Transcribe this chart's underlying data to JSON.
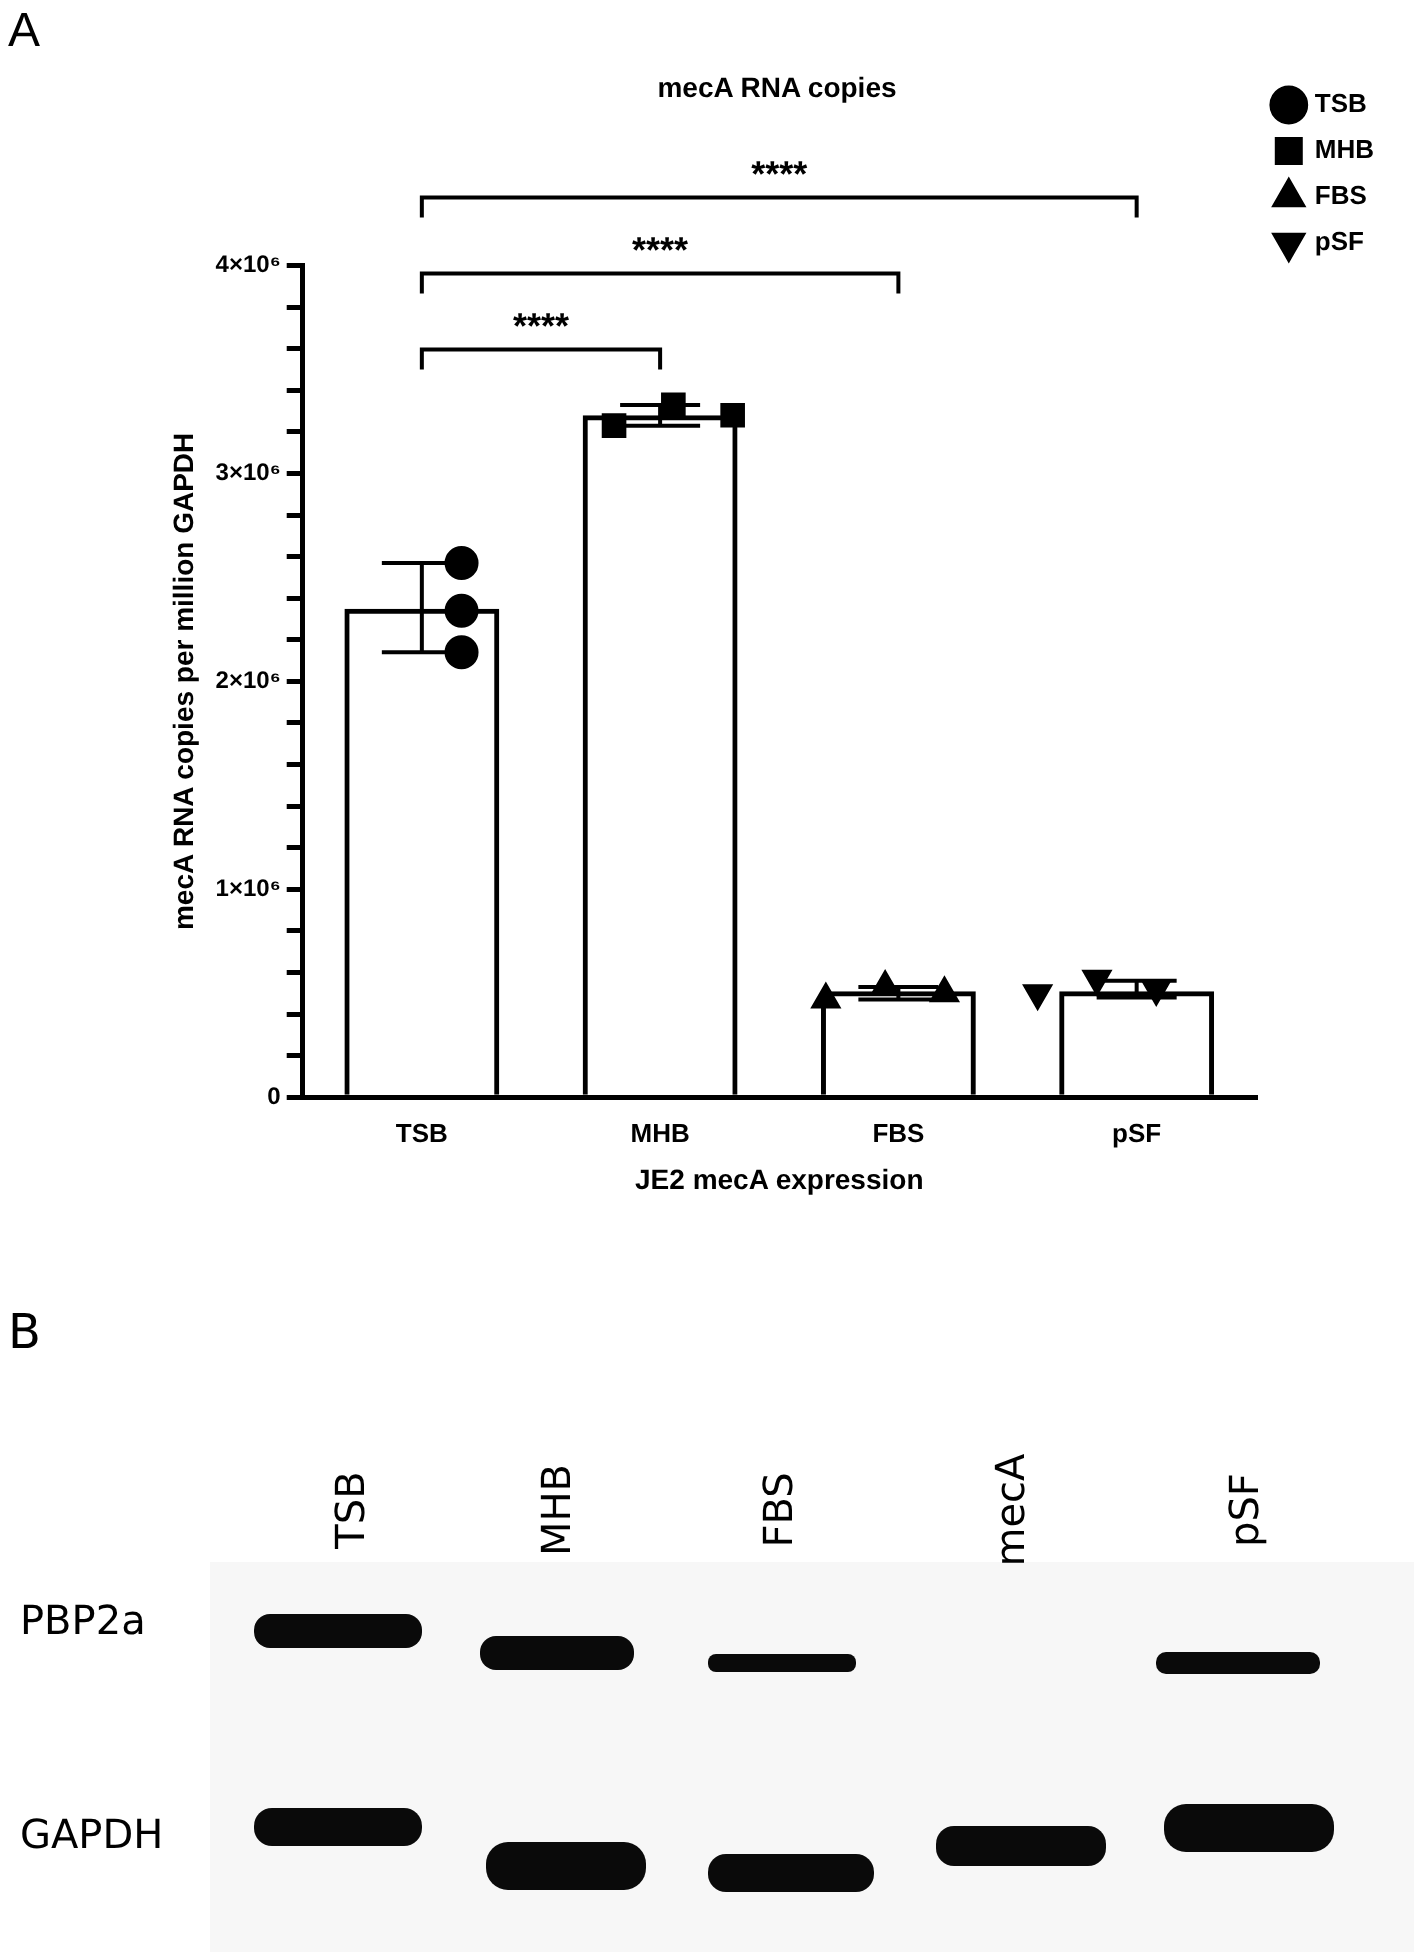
{
  "chart_data": [
    {
      "type": "bar",
      "title": "mecA RNA copies",
      "xlabel": "JE2 mecA expression",
      "ylabel": "mecA RNA copies per million GAPDH",
      "categories": [
        "TSB",
        "MHB",
        "FBS",
        "pSF"
      ],
      "series": [
        {
          "type": "bar",
          "color": "#000000",
          "values": [
            2350000,
            3280000,
            510000,
            510000
          ],
          "errors": [
            [
              2140000,
              2570000
            ],
            [
              3230000,
              3330000
            ],
            [
              470000,
              530000
            ],
            [
              480000,
              560000
            ]
          ]
        },
        {
          "type": "scatter",
          "name": "TSB",
          "marker": "circle",
          "color": "#000000",
          "x": [
            "TSB",
            "TSB",
            "TSB"
          ],
          "values": [
            2570000,
            2340000,
            2140000
          ]
        },
        {
          "type": "scatter",
          "name": "MHB",
          "marker": "square",
          "color": "#000000",
          "x": [
            "MHB",
            "MHB",
            "MHB"
          ],
          "values": [
            3230000,
            3330000,
            3280000
          ]
        },
        {
          "type": "scatter",
          "name": "FBS",
          "marker": "triangle",
          "color": "#000000",
          "x": [
            "FBS",
            "FBS",
            "FBS"
          ],
          "values": [
            470000,
            530000,
            500000
          ]
        },
        {
          "type": "scatter",
          "name": "pSF",
          "marker": "triangle-down",
          "color": "#000000",
          "x": [
            "pSF",
            "pSF",
            "pSF"
          ],
          "values": [
            500000,
            570000,
            520000
          ]
        }
      ],
      "ylim": [
        0,
        4000000
      ],
      "yticks": [
        {
          "value": 0,
          "label": "0"
        },
        {
          "value": 200000,
          "label": null
        },
        {
          "value": 400000,
          "label": null
        },
        {
          "value": 600000,
          "label": null
        },
        {
          "value": 800000,
          "label": null
        },
        {
          "value": 1000000,
          "label": "1×10⁶"
        },
        {
          "value": 1200000,
          "label": null
        },
        {
          "value": 1400000,
          "label": null
        },
        {
          "value": 1600000,
          "label": null
        },
        {
          "value": 1800000,
          "label": null
        },
        {
          "value": 2000000,
          "label": "2×10⁶"
        },
        {
          "value": 2200000,
          "label": null
        },
        {
          "value": 2400000,
          "label": null
        },
        {
          "value": 2600000,
          "label": null
        },
        {
          "value": 2800000,
          "label": null
        },
        {
          "value": 3000000,
          "label": "3×10⁶"
        },
        {
          "value": 3200000,
          "label": null
        },
        {
          "value": 3400000,
          "label": null
        },
        {
          "value": 3600000,
          "label": null
        },
        {
          "value": 3800000,
          "label": null
        },
        {
          "value": 4000000,
          "label": "4×10⁶"
        }
      ],
      "grid": false,
      "legend": "top right",
      "annotations": [
        "A",
        "****",
        "****",
        "****"
      ]
    },
    {
      "type": "other",
      "categories": [
        "TSB",
        "MHB",
        "FBS",
        "mecA",
        "pSF"
      ],
      "y_categories": [
        "PBP2a",
        "GAPDH"
      ],
      "annotations": [
        "B"
      ]
    }
  ]
}
